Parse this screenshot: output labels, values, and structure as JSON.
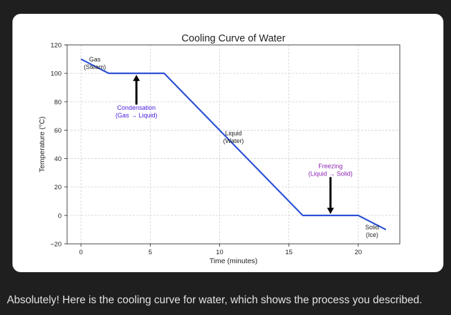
{
  "message": {
    "caption": "Absolutely! Here is the cooling curve for water, which shows the process you described."
  },
  "colors": {
    "page_bg": "#1f1f1f",
    "card_bg": "#ffffff",
    "line": "#2b4fd6",
    "condensation_label": "#4b1fe0",
    "freezing_label": "#8a1fb0",
    "arrow": "#000000"
  },
  "chart_data": {
    "type": "line",
    "title": "Cooling Curve of Water",
    "xlabel": "Time (minutes)",
    "ylabel": "Temperature (°C)",
    "xlim": [
      -1,
      23
    ],
    "ylim": [
      -20,
      120
    ],
    "x_ticks": [
      0,
      5,
      10,
      15,
      20
    ],
    "y_ticks": [
      -20,
      0,
      20,
      40,
      60,
      80,
      100,
      120
    ],
    "x_tick_labels": [
      "0",
      "5",
      "10",
      "15",
      "20"
    ],
    "y_tick_labels": [
      "−20",
      "0",
      "20",
      "40",
      "60",
      "80",
      "100",
      "120"
    ],
    "grid": true,
    "series": [
      {
        "x": [
          0,
          2,
          6,
          16,
          20,
          22
        ],
        "y": [
          110,
          100,
          100,
          0,
          0,
          -10
        ]
      }
    ],
    "annotations": [
      {
        "id": "gas",
        "lines": [
          "Gas",
          "(Steam)"
        ],
        "x": 1,
        "y": 107,
        "color": "#222222"
      },
      {
        "id": "liquid",
        "lines": [
          "Liquid",
          "(Water)"
        ],
        "x": 11,
        "y": 55,
        "color": "#222222"
      },
      {
        "id": "solid",
        "lines": [
          "Solid",
          "(Ice)"
        ],
        "x": 21,
        "y": -11,
        "color": "#222222"
      },
      {
        "id": "condensation",
        "lines": [
          "Condensation",
          "(Gas → Liquid)"
        ],
        "x": 4,
        "y": 73,
        "color": "#4b1fe0",
        "arrow": {
          "from_y": 78,
          "to_y": 99,
          "x": 4
        }
      },
      {
        "id": "freezing",
        "lines": [
          "Freezing",
          "(Liquid → Solid)"
        ],
        "x": 18,
        "y": 32,
        "color": "#8a1fb0",
        "arrow": {
          "from_y": 27,
          "to_y": 1,
          "x": 18
        }
      }
    ]
  }
}
